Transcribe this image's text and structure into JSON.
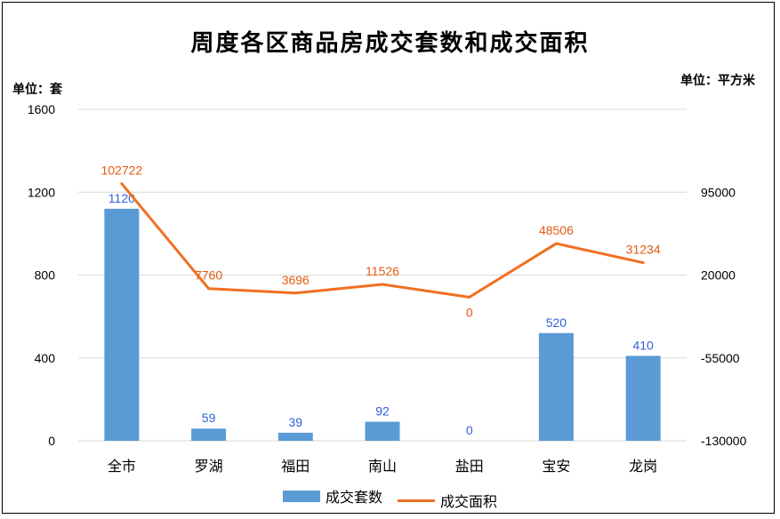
{
  "chart_data": {
    "type": "bar+line",
    "title": "周度各区商品房成交套数和成交面积",
    "left_unit": "单位：套",
    "right_unit": "单位：平方米",
    "categories": [
      "全市",
      "罗湖",
      "福田",
      "南山",
      "盐田",
      "宝安",
      "龙岗"
    ],
    "y_left": {
      "min": 0,
      "max": 1600,
      "ticks": [
        "0",
        "400",
        "800",
        "1200",
        "1600"
      ]
    },
    "y_right": {
      "min": -130000,
      "max": 170000,
      "ticks": [
        "-130000",
        "-55000",
        "20000",
        "95000"
      ]
    },
    "series": [
      {
        "name": "成交套数",
        "type": "bar",
        "axis": "left",
        "color": "#5B9BD5",
        "label_color": "#2E5FD9",
        "values": [
          1120,
          59,
          39,
          92,
          0,
          520,
          410
        ]
      },
      {
        "name": "成交面积",
        "type": "line",
        "axis": "right",
        "color": "#F26F21",
        "label_color": "#E35A13",
        "values": [
          102722,
          7760,
          3696,
          11526,
          0,
          48506,
          31234
        ]
      }
    ],
    "legend_position": "bottom",
    "grid": true
  }
}
